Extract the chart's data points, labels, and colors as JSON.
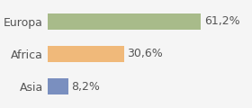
{
  "categories": [
    "Europa",
    "Africa",
    "Asia"
  ],
  "values": [
    61.2,
    30.6,
    8.2
  ],
  "labels": [
    "61,2%",
    "30,6%",
    "8,2%"
  ],
  "bar_colors": [
    "#a8bb8a",
    "#f0b97a",
    "#7a8fbf"
  ],
  "background_color": "#f5f5f5",
  "xlim": [
    0,
    80
  ],
  "bar_height": 0.52,
  "label_fontsize": 9,
  "tick_fontsize": 9
}
